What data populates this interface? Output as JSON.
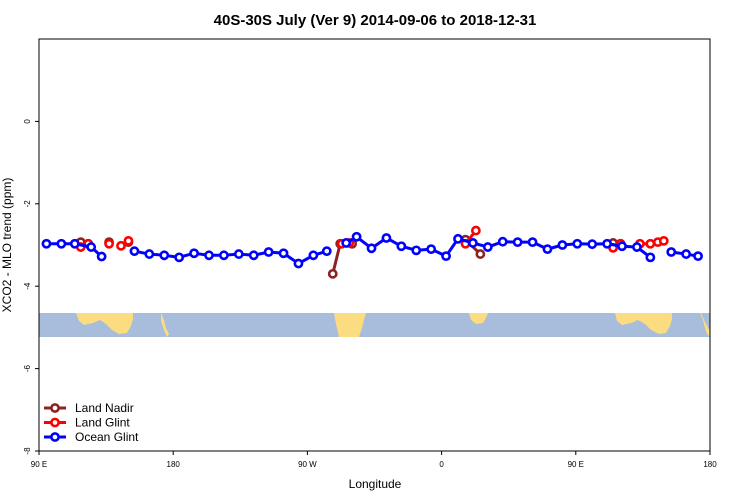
{
  "chart_data": {
    "type": "line",
    "title": "40S-30S July (Ver 9)   2014-09-06 to 2018-12-31",
    "xlabel": "Longitude",
    "ylabel": "XCO2 - MLO trend (ppm)",
    "x_axis": "longitude, continuous from 90 E eastward across 180 to 180 (=-180)",
    "xlim": [
      90,
      540
    ],
    "xticks": [
      {
        "value": 90,
        "label": "90 E"
      },
      {
        "value": 180,
        "label": "180"
      },
      {
        "value": 270,
        "label": "90 W"
      },
      {
        "value": 360,
        "label": "0"
      },
      {
        "value": 450,
        "label": "90 E"
      },
      {
        "value": 540,
        "label": "180"
      }
    ],
    "ylim": [
      -8,
      2
    ],
    "yticks": [
      {
        "value": 0,
        "label": "0"
      },
      {
        "value": -2,
        "label": "-2"
      },
      {
        "value": -4,
        "label": "-4"
      },
      {
        "value": -6,
        "label": "-6"
      },
      {
        "value": -8,
        "label": "-8"
      }
    ],
    "grid": false,
    "legend_position": "bottom-left",
    "map_strip": {
      "y_range": [
        -4.7,
        -5.25
      ],
      "ocean_color": "#a8bcdc",
      "land_color": "#fcdc80"
    },
    "series": [
      {
        "name": "Land Nadir",
        "color": "#8b2323",
        "segments": [
          [
            [
              118,
              -2.93
            ],
            [
              123,
              -2.97
            ]
          ],
          [
            [
              137,
              -2.93
            ]
          ],
          [
            [
              150,
              -2.93
            ]
          ],
          [
            [
              287,
              -3.7
            ],
            [
              292,
              -2.97
            ]
          ],
          [
            [
              300,
              -2.97
            ]
          ],
          [
            [
              376,
              -2.87
            ],
            [
              386,
              -3.22
            ]
          ],
          [
            [
              475,
              -2.95
            ],
            [
              480,
              -2.97
            ]
          ]
        ]
      },
      {
        "name": "Land Glint",
        "color": "#ff0000",
        "segments": [
          [
            [
              118,
              -3.05
            ],
            [
              123,
              -2.97
            ]
          ],
          [
            [
              137,
              -2.97
            ]
          ],
          [
            [
              145,
              -3.02
            ],
            [
              150,
              -2.9
            ]
          ],
          [
            [
              293,
              -2.97
            ],
            [
              298,
              -2.95
            ]
          ],
          [
            [
              376,
              -2.97
            ],
            [
              383,
              -2.65
            ]
          ],
          [
            [
              475,
              -3.07
            ],
            [
              480,
              -2.97
            ]
          ],
          [
            [
              493,
              -2.97
            ],
            [
              500,
              -2.97
            ]
          ],
          [
            [
              505,
              -2.93
            ],
            [
              509,
              -2.9
            ]
          ]
        ]
      },
      {
        "name": "Ocean Glint",
        "color": "#0000ff",
        "segments": [
          [
            [
              95,
              -2.97
            ],
            [
              105,
              -2.97
            ],
            [
              114,
              -2.97
            ],
            [
              125,
              -3.05
            ],
            [
              132,
              -3.28
            ]
          ],
          [
            [
              154,
              -3.15
            ],
            [
              164,
              -3.22
            ],
            [
              174,
              -3.25
            ],
            [
              184,
              -3.3
            ],
            [
              194,
              -3.2
            ],
            [
              204,
              -3.25
            ],
            [
              214,
              -3.25
            ],
            [
              224,
              -3.22
            ],
            [
              234,
              -3.25
            ],
            [
              244,
              -3.17
            ],
            [
              254,
              -3.2
            ],
            [
              264,
              -3.45
            ],
            [
              274,
              -3.25
            ],
            [
              283,
              -3.15
            ]
          ],
          [
            [
              296,
              -2.95
            ],
            [
              303,
              -2.8
            ],
            [
              313,
              -3.08
            ],
            [
              323,
              -2.83
            ],
            [
              333,
              -3.03
            ],
            [
              343,
              -3.13
            ],
            [
              353,
              -3.1
            ],
            [
              363,
              -3.27
            ],
            [
              371,
              -2.85
            ],
            [
              381,
              -2.95
            ],
            [
              391,
              -3.05
            ],
            [
              401,
              -2.92
            ],
            [
              411,
              -2.93
            ],
            [
              421,
              -2.93
            ],
            [
              431,
              -3.1
            ],
            [
              441,
              -3.0
            ],
            [
              451,
              -2.97
            ],
            [
              461,
              -2.98
            ],
            [
              471,
              -2.97
            ],
            [
              481,
              -3.03
            ],
            [
              491,
              -3.05
            ],
            [
              500,
              -3.3
            ]
          ],
          [
            [
              514,
              -3.17
            ],
            [
              524,
              -3.22
            ],
            [
              532,
              -3.27
            ]
          ]
        ]
      }
    ]
  }
}
